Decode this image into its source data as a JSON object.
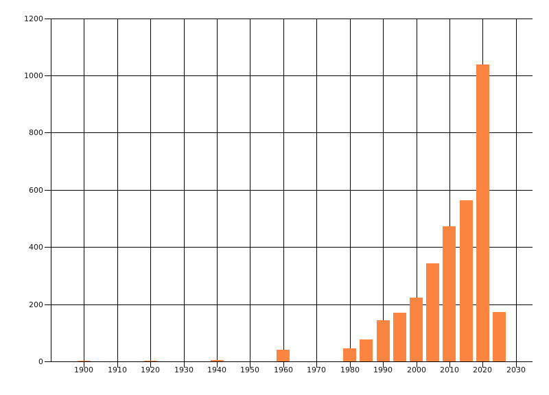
{
  "page": {
    "background": "#ffffff"
  },
  "chart_data": {
    "type": "bar",
    "title": "",
    "xlabel": "",
    "ylabel": "",
    "x": [
      1900,
      1920,
      1940,
      1960,
      1980,
      1985,
      1990,
      1995,
      2000,
      2005,
      2010,
      2015,
      2020,
      2025
    ],
    "values": [
      4,
      4,
      7,
      42,
      46,
      77,
      145,
      172,
      225,
      343,
      473,
      565,
      1040,
      175
    ],
    "bar_width_years": 4,
    "x_ticks": [
      1900,
      1910,
      1920,
      1930,
      1940,
      1950,
      1960,
      1970,
      1980,
      1990,
      2000,
      2010,
      2020,
      2030
    ],
    "y_ticks": [
      0,
      200,
      400,
      600,
      800,
      1000,
      1200
    ],
    "xlim": [
      1890,
      2035
    ],
    "ylim": [
      0,
      1200
    ],
    "grid": true,
    "legend": false,
    "colors": {
      "bar": "#fb8440",
      "grid": "#000000",
      "tick_label": "#111111",
      "background": "#ffffff"
    }
  }
}
